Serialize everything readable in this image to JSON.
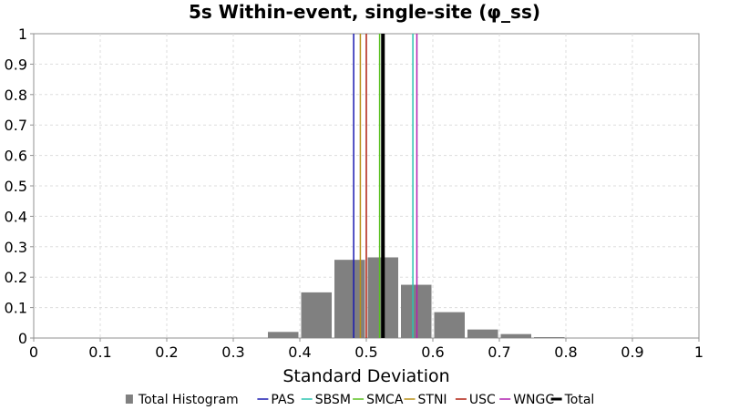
{
  "chart_data": {
    "type": "bar",
    "title": "5s Within-event, single-site (φ_ss)",
    "xlabel": "Standard Deviation",
    "ylabel": "",
    "xlim": [
      0,
      1
    ],
    "ylim": [
      0,
      1
    ],
    "x_ticks": [
      "0",
      "0.1",
      "0.2",
      "0.3",
      "0.4",
      "0.5",
      "0.6",
      "0.7",
      "0.8",
      "0.9",
      "1"
    ],
    "y_ticks": [
      "0",
      "0.1",
      "0.2",
      "0.3",
      "0.4",
      "0.5",
      "0.6",
      "0.7",
      "0.8",
      "0.9",
      "1"
    ],
    "grid": true,
    "legend_position": "bottom",
    "histogram": {
      "name": "Total Histogram",
      "color": "#808080",
      "bin_width": 0.05,
      "bins": [
        {
          "x0": 0.35,
          "value": 0.02
        },
        {
          "x0": 0.4,
          "value": 0.15
        },
        {
          "x0": 0.45,
          "value": 0.257
        },
        {
          "x0": 0.5,
          "value": 0.265
        },
        {
          "x0": 0.55,
          "value": 0.175
        },
        {
          "x0": 0.6,
          "value": 0.085
        },
        {
          "x0": 0.65,
          "value": 0.028
        },
        {
          "x0": 0.7,
          "value": 0.013
        },
        {
          "x0": 0.75,
          "value": 0.003
        }
      ]
    },
    "lines": [
      {
        "name": "PAS",
        "x": 0.481,
        "color": "#1a1ab0",
        "width": 1.5
      },
      {
        "name": "SBSM",
        "x": 0.57,
        "color": "#2cc4b0",
        "width": 1.5
      },
      {
        "name": "SMCA",
        "x": 0.52,
        "color": "#5ac020",
        "width": 1.5
      },
      {
        "name": "STNI",
        "x": 0.491,
        "color": "#b89018",
        "width": 1.5
      },
      {
        "name": "USC",
        "x": 0.5,
        "color": "#b02010",
        "width": 1.5
      },
      {
        "name": "WNGC",
        "x": 0.576,
        "color": "#b020b0",
        "width": 1.5
      },
      {
        "name": "Total",
        "x": 0.525,
        "color": "#000000",
        "width": 4
      }
    ]
  }
}
